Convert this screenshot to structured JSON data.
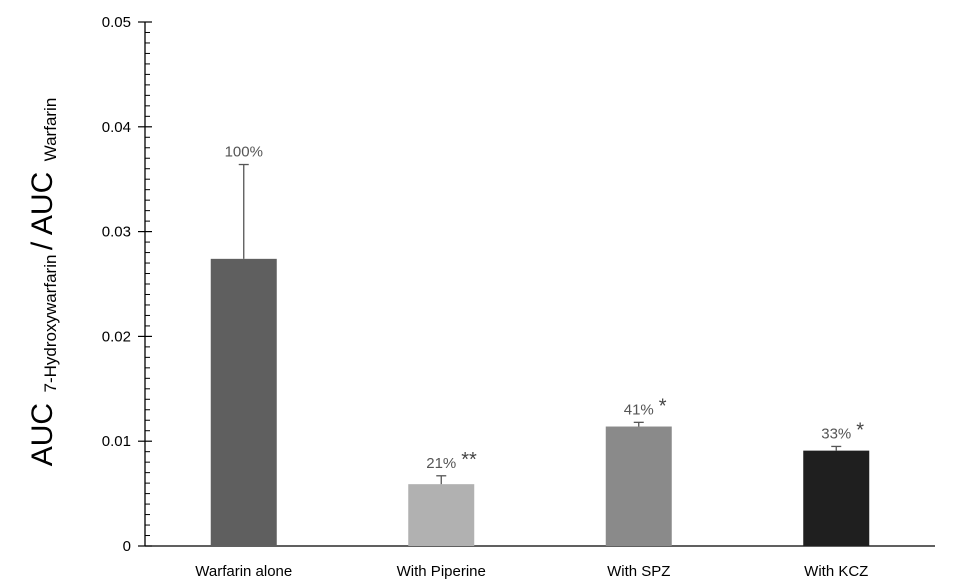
{
  "chart_data": {
    "type": "bar",
    "categories": [
      "Warfarin alone",
      "With Piperine",
      "With SPZ",
      "With KCZ"
    ],
    "values": [
      0.0274,
      0.0059,
      0.0114,
      0.0091
    ],
    "error_plus": [
      0.009,
      0.0008,
      0.0004,
      0.0004
    ],
    "data_labels": [
      "100%",
      "21%",
      "41%",
      "33%"
    ],
    "significance": [
      "",
      "**",
      "*",
      "*"
    ],
    "bar_colors": [
      "#5f5f5f",
      "#b1b1b1",
      "#8a8a8a",
      "#1f1f1f"
    ],
    "ylim": [
      0,
      0.05
    ],
    "yticks": [
      0,
      0.01,
      0.02,
      0.03,
      0.04,
      0.05
    ],
    "ytick_labels": [
      "0",
      "0.01",
      "0.02",
      "0.03",
      "0.04",
      "0.05"
    ],
    "ylabel": {
      "main1": "AUC",
      "sub1": "7-Hydroxywarfarin",
      "separator": " / ",
      "main2": "AUC",
      "sub2": "Warfarin"
    },
    "title": "",
    "xlabel": "",
    "grid": false,
    "minor_ticks": true
  }
}
